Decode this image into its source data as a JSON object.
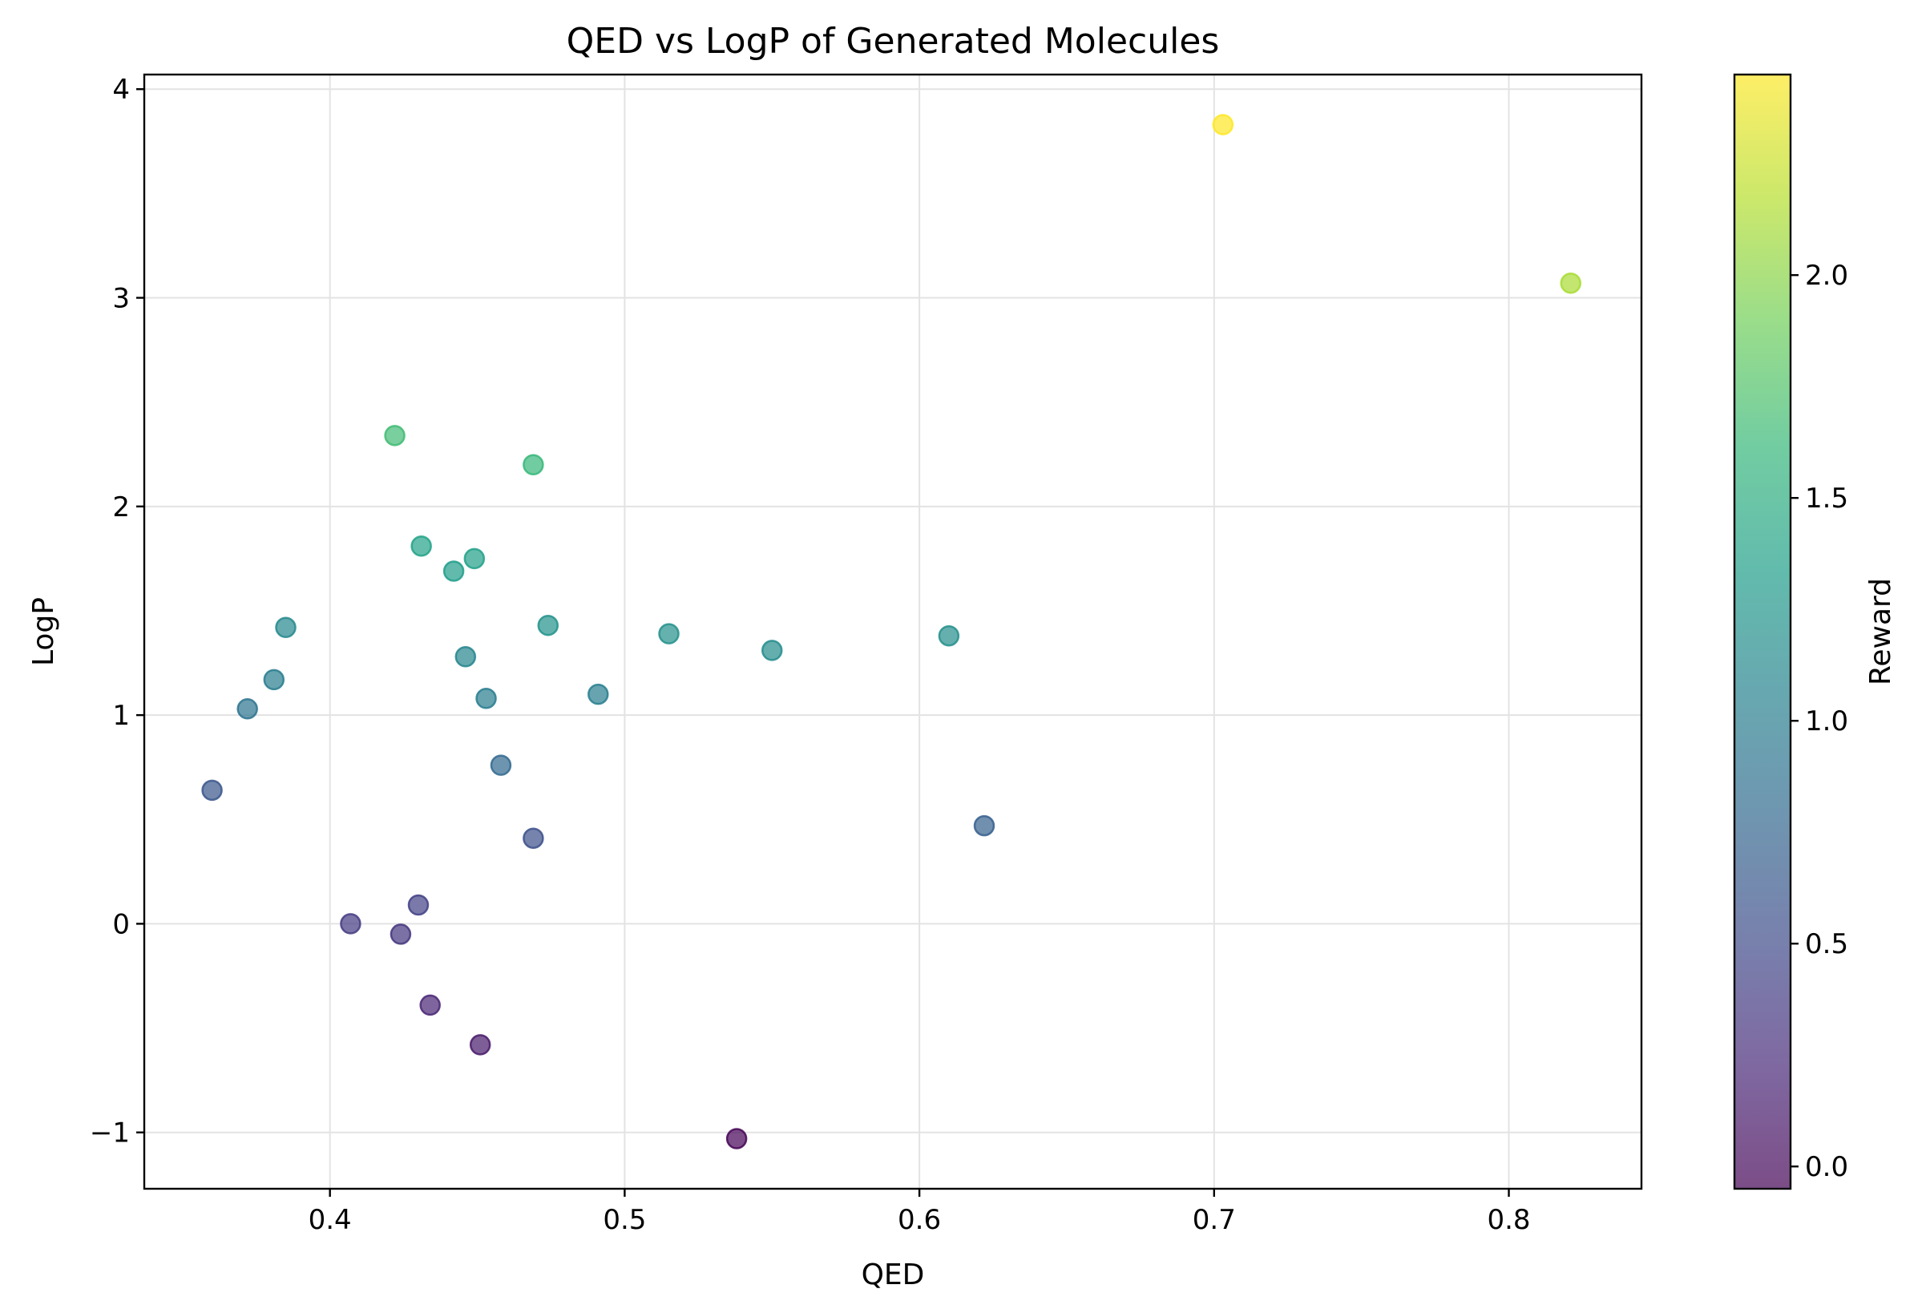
{
  "chart_data": {
    "type": "scatter",
    "title": "QED vs LogP of Generated Molecules",
    "xlabel": "QED",
    "ylabel": "LogP",
    "xlim": [
      0.337,
      0.845
    ],
    "ylim": [
      -1.27,
      4.07
    ],
    "xticks": [
      0.4,
      0.5,
      0.6,
      0.7,
      0.8
    ],
    "xtick_labels": [
      "0.4",
      "0.5",
      "0.6",
      "0.7",
      "0.8"
    ],
    "yticks": [
      -1,
      0,
      1,
      2,
      3,
      4
    ],
    "ytick_labels": [
      "−1",
      "0",
      "1",
      "2",
      "3",
      "4"
    ],
    "grid": true,
    "marker_alpha": 0.7,
    "colorbar": {
      "label": "Reward",
      "colormap": "viridis",
      "range": [
        -0.05,
        2.45
      ],
      "ticks": [
        0.0,
        0.5,
        1.0,
        1.5,
        2.0
      ],
      "tick_labels": [
        "0.0",
        "0.5",
        "1.0",
        "1.5",
        "2.0"
      ]
    },
    "colormap_stops": [
      "#440154",
      "#482878",
      "#3e4a89",
      "#31688e",
      "#26828e",
      "#1f9e89",
      "#35b779",
      "#6ece58",
      "#b5de2b",
      "#fde725"
    ],
    "points": [
      {
        "x": 0.703,
        "y": 3.83,
        "reward": 2.45
      },
      {
        "x": 0.821,
        "y": 3.07,
        "reward": 2.12
      },
      {
        "x": 0.422,
        "y": 2.34,
        "reward": 1.67
      },
      {
        "x": 0.469,
        "y": 2.2,
        "reward": 1.62
      },
      {
        "x": 0.431,
        "y": 1.81,
        "reward": 1.38
      },
      {
        "x": 0.449,
        "y": 1.75,
        "reward": 1.36
      },
      {
        "x": 0.442,
        "y": 1.69,
        "reward": 1.33
      },
      {
        "x": 0.474,
        "y": 1.43,
        "reward": 1.22
      },
      {
        "x": 0.515,
        "y": 1.39,
        "reward": 1.2
      },
      {
        "x": 0.61,
        "y": 1.38,
        "reward": 1.19
      },
      {
        "x": 0.55,
        "y": 1.31,
        "reward": 1.16
      },
      {
        "x": 0.385,
        "y": 1.42,
        "reward": 1.12
      },
      {
        "x": 0.446,
        "y": 1.28,
        "reward": 1.09
      },
      {
        "x": 0.381,
        "y": 1.17,
        "reward": 1.0
      },
      {
        "x": 0.453,
        "y": 1.08,
        "reward": 1.0
      },
      {
        "x": 0.491,
        "y": 1.1,
        "reward": 1.02
      },
      {
        "x": 0.372,
        "y": 1.03,
        "reward": 0.9
      },
      {
        "x": 0.458,
        "y": 0.76,
        "reward": 0.78
      },
      {
        "x": 0.36,
        "y": 0.64,
        "reward": 0.62
      },
      {
        "x": 0.622,
        "y": 0.47,
        "reward": 0.7
      },
      {
        "x": 0.469,
        "y": 0.41,
        "reward": 0.55
      },
      {
        "x": 0.43,
        "y": 0.09,
        "reward": 0.42
      },
      {
        "x": 0.407,
        "y": 0.0,
        "reward": 0.38
      },
      {
        "x": 0.424,
        "y": -0.05,
        "reward": 0.33
      },
      {
        "x": 0.434,
        "y": -0.39,
        "reward": 0.2
      },
      {
        "x": 0.451,
        "y": -0.58,
        "reward": 0.12
      },
      {
        "x": 0.538,
        "y": -1.03,
        "reward": -0.04
      }
    ]
  }
}
